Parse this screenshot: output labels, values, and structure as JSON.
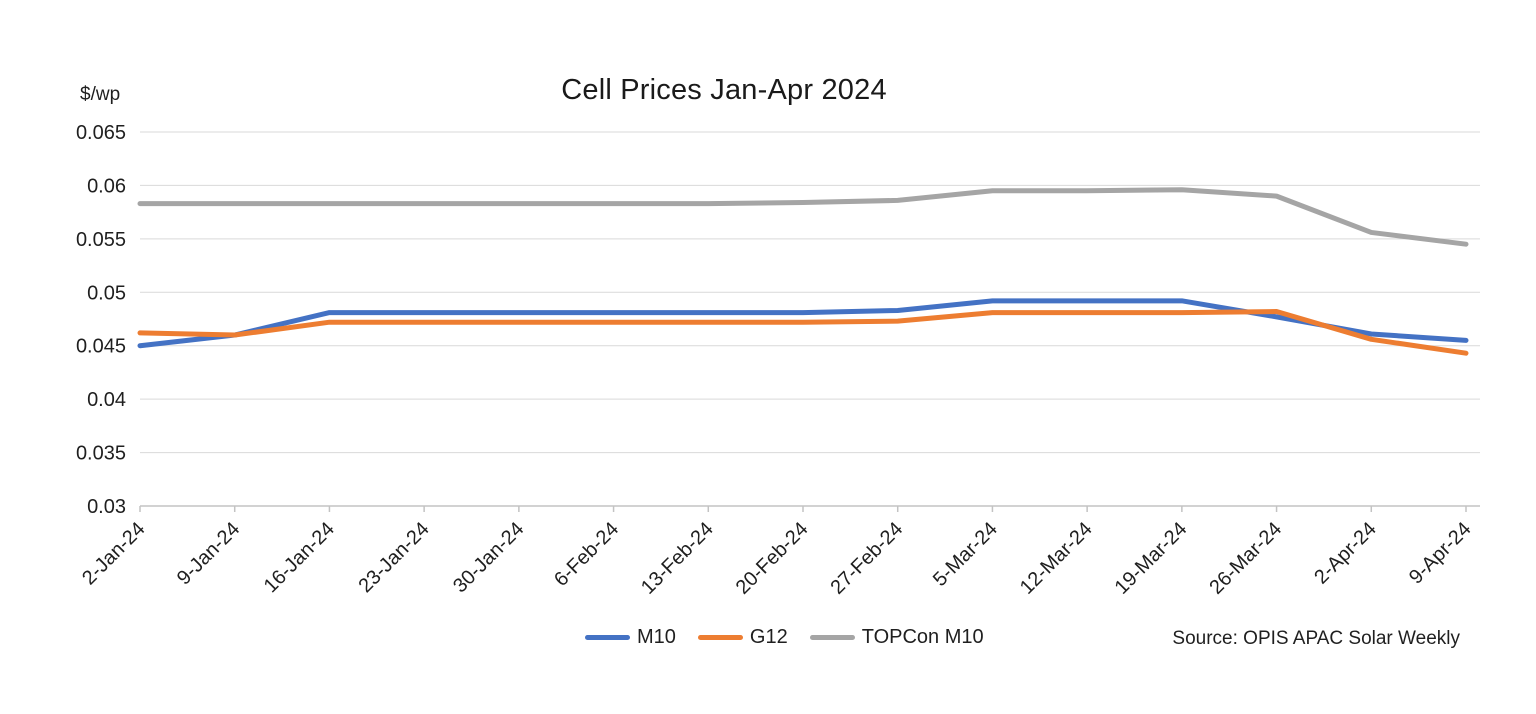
{
  "page": {
    "background": "#ffffff"
  },
  "chart_data": {
    "type": "line",
    "title": "Cell Prices Jan-Apr 2024",
    "ylabel": "$/wp",
    "xlabel": "",
    "source": "Source: OPIS APAC Solar Weekly",
    "categories": [
      "2-Jan-24",
      "9-Jan-24",
      "16-Jan-24",
      "23-Jan-24",
      "30-Jan-24",
      "6-Feb-24",
      "13-Feb-24",
      "20-Feb-24",
      "27-Feb-24",
      "5-Mar-24",
      "12-Mar-24",
      "19-Mar-24",
      "26-Mar-24",
      "2-Apr-24",
      "9-Apr-24"
    ],
    "series": [
      {
        "name": "M10",
        "color": "#4472C4",
        "values": [
          0.045,
          0.046,
          0.0481,
          0.0481,
          0.0481,
          0.0481,
          0.0481,
          0.0481,
          0.0483,
          0.0492,
          0.0492,
          0.0492,
          0.0477,
          0.0461,
          0.0455
        ]
      },
      {
        "name": "G12",
        "color": "#ED7D31",
        "values": [
          0.0462,
          0.046,
          0.0472,
          0.0472,
          0.0472,
          0.0472,
          0.0472,
          0.0472,
          0.0473,
          0.0481,
          0.0481,
          0.0481,
          0.0482,
          0.0456,
          0.0443
        ]
      },
      {
        "name": "TOPCon M10",
        "color": "#A5A5A5",
        "values": [
          0.0583,
          0.0583,
          0.0583,
          0.0583,
          0.0583,
          0.0583,
          0.0583,
          0.0584,
          0.0586,
          0.0595,
          0.0595,
          0.0596,
          0.059,
          0.0556,
          0.0545
        ]
      }
    ],
    "ylim": [
      0.03,
      0.065
    ],
    "ytick_labels": [
      "0.065",
      "0.06",
      "0.055",
      "0.05",
      "0.045",
      "0.04",
      "0.035",
      "0.03"
    ],
    "grid": true,
    "legend_position": "bottom",
    "gridline_color": "#D9D9D9",
    "axis_color": "#C3C3C3",
    "text_color": "#1f1f1f",
    "line_width": 5
  }
}
